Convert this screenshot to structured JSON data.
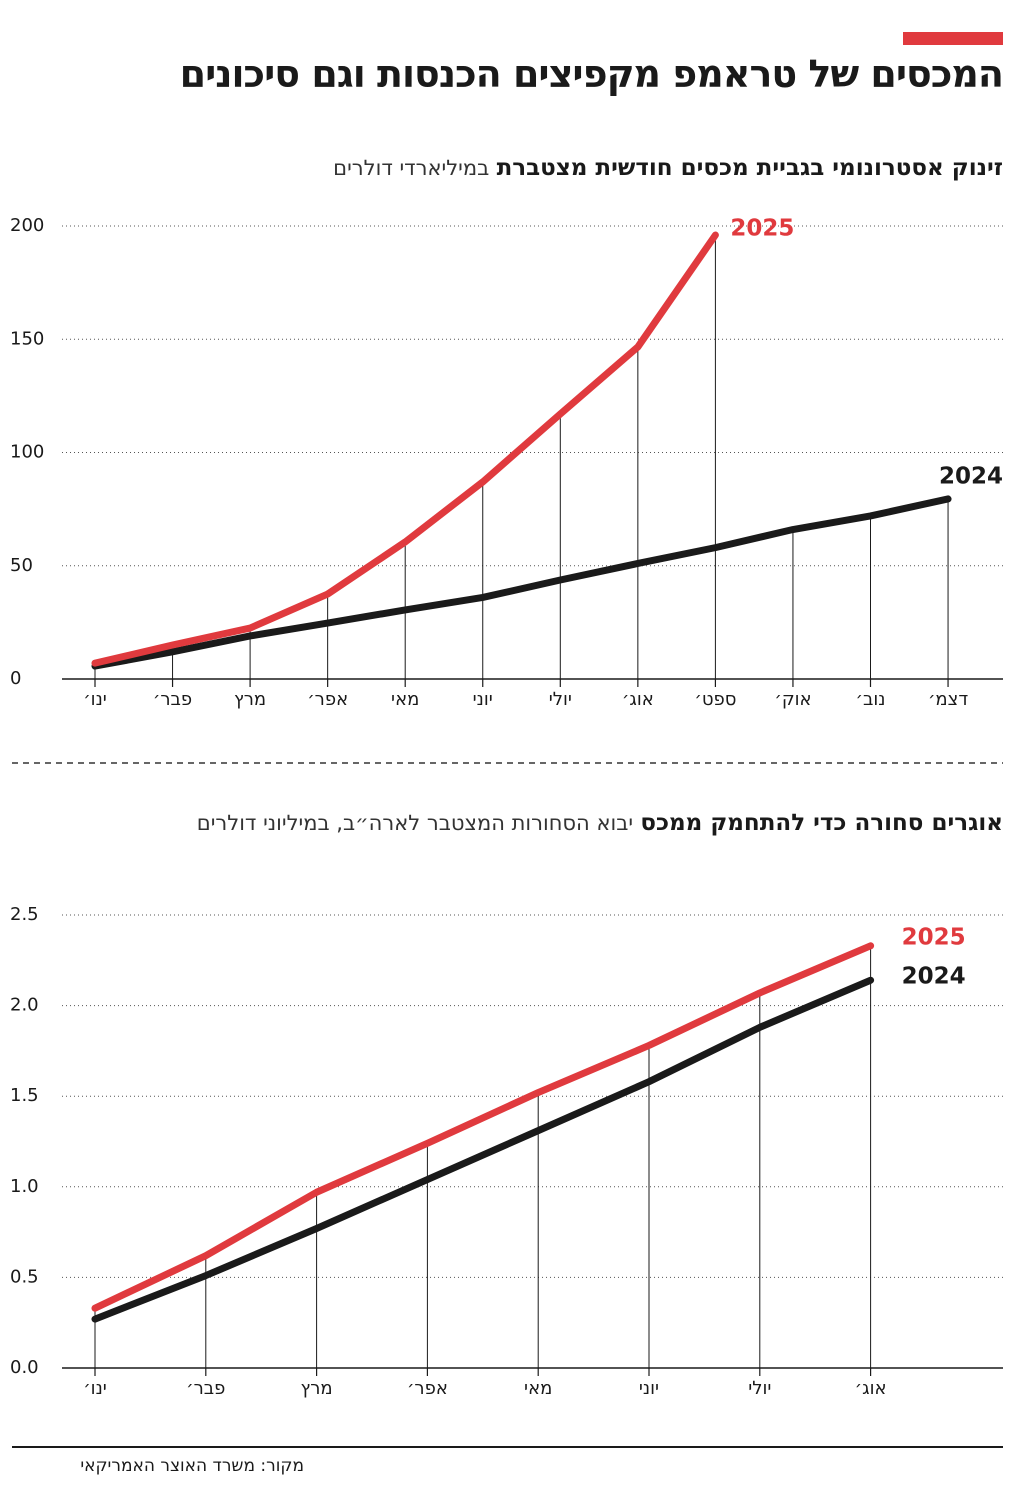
{
  "title": "המכסים של טראמפ מקפיצים הכנסות וגם סיכונים",
  "source": "מקור: משרד האוצר האמריקאי",
  "chart_data": [
    {
      "type": "line",
      "title": "זינוק אסטרונומי בגביית מכסים חודשית מצטברת",
      "subtitle": "במיליארדי דולרים",
      "categories": [
        "ינו׳",
        "פבר׳",
        "מרץ",
        "אפר׳",
        "מאי",
        "יוני",
        "יולי",
        "אוג׳",
        "ספט׳",
        "אוק׳",
        "נוב׳",
        "דצמ׳"
      ],
      "series": [
        {
          "name": "2025",
          "color": "#e03a3e",
          "values": [
            7,
            15,
            22.5,
            37.5,
            60.5,
            87,
            117,
            146.6,
            196,
            null,
            null,
            null
          ]
        },
        {
          "name": "2024",
          "color": "#1a1a1a",
          "values": [
            5.7,
            12,
            19,
            24.7,
            30.5,
            36,
            43.7,
            51,
            58,
            66,
            72,
            79.5
          ]
        }
      ],
      "ylim": [
        0,
        200
      ],
      "yticks": [
        0,
        50,
        100,
        150,
        200
      ],
      "grid": true
    },
    {
      "type": "line",
      "title": "אוגרים סחורה כדי להתחמק ממכס",
      "subtitle": "יבוא הסחורות המצטבר לארה״ב, במיליוני דולרים",
      "categories": [
        "ינו׳",
        "פבר׳",
        "מרץ",
        "אפר׳",
        "מאי",
        "יוני",
        "יולי",
        "אוג׳"
      ],
      "series": [
        {
          "name": "2025",
          "color": "#e03a3e",
          "values": [
            0.33,
            0.62,
            0.97,
            1.24,
            1.52,
            1.78,
            2.07,
            2.33
          ]
        },
        {
          "name": "2024",
          "color": "#1a1a1a",
          "values": [
            0.27,
            0.51,
            0.77,
            1.04,
            1.31,
            1.58,
            1.88,
            2.14
          ]
        }
      ],
      "ylim": [
        0,
        2.5
      ],
      "yticks": [
        {
          "value": 0,
          "label": "0.0"
        },
        0.5,
        {
          "value": 1,
          "label": "1.0"
        },
        1.5,
        {
          "value": 2,
          "label": "2.0"
        },
        2.5
      ],
      "grid": true
    }
  ]
}
